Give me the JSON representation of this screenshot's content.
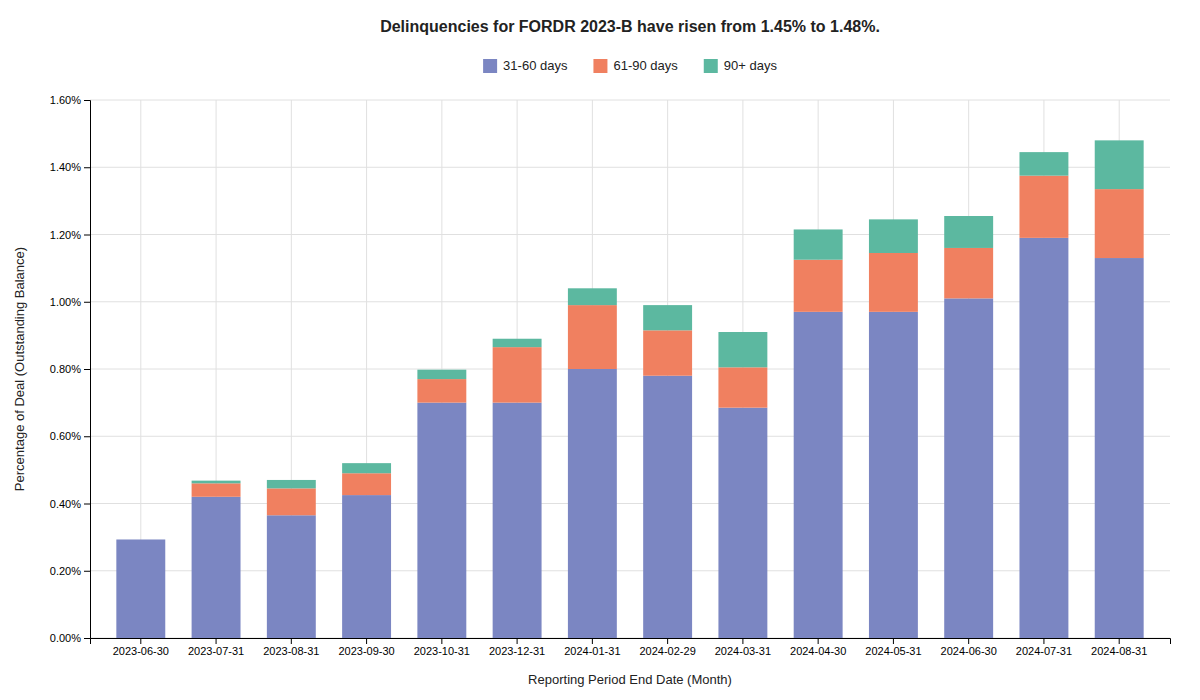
{
  "chart_data": {
    "type": "bar",
    "stacked": true,
    "title": "Delinquencies for FORDR 2023-B have risen from 1.45% to 1.48%.",
    "xlabel": "Reporting Period End Date (Month)",
    "ylabel": "Percentage of Deal (Outstanding Balance)",
    "categories": [
      "2023-06-30",
      "2023-07-31",
      "2023-08-31",
      "2023-09-30",
      "2023-10-31",
      "2023-12-31",
      "2024-01-31",
      "2024-02-29",
      "2024-03-31",
      "2024-04-30",
      "2024-05-31",
      "2024-06-30",
      "2024-07-31",
      "2024-08-31"
    ],
    "series": [
      {
        "name": "31-60 days",
        "color": "#7b86c2",
        "values": [
          0.293,
          0.42,
          0.365,
          0.425,
          0.7,
          0.7,
          0.8,
          0.78,
          0.685,
          0.97,
          0.97,
          1.01,
          1.19,
          1.13
        ]
      },
      {
        "name": "61-90 days",
        "color": "#f08060",
        "values": [
          0.0,
          0.04,
          0.08,
          0.065,
          0.07,
          0.165,
          0.19,
          0.135,
          0.12,
          0.155,
          0.175,
          0.15,
          0.185,
          0.205
        ]
      },
      {
        "name": "90+ days",
        "color": "#5cb8a0",
        "values": [
          0.0,
          0.008,
          0.025,
          0.03,
          0.028,
          0.025,
          0.05,
          0.075,
          0.105,
          0.09,
          0.1,
          0.095,
          0.07,
          0.145
        ]
      }
    ],
    "ylim": [
      0,
      1.6
    ],
    "yticks": [
      {
        "value": 0,
        "label": "0.00%"
      },
      {
        "value": 0.2,
        "label": "0.20%"
      },
      {
        "value": 0.4,
        "label": "0.40%"
      },
      {
        "value": 0.6,
        "label": "0.60%"
      },
      {
        "value": 0.8,
        "label": "0.80%"
      },
      {
        "value": 1.0,
        "label": "1.00%"
      },
      {
        "value": 1.2,
        "label": "1.20%"
      },
      {
        "value": 1.4,
        "label": "1.40%"
      },
      {
        "value": 1.6,
        "label": "1.60%"
      }
    ],
    "grid": true,
    "legend": "top"
  }
}
